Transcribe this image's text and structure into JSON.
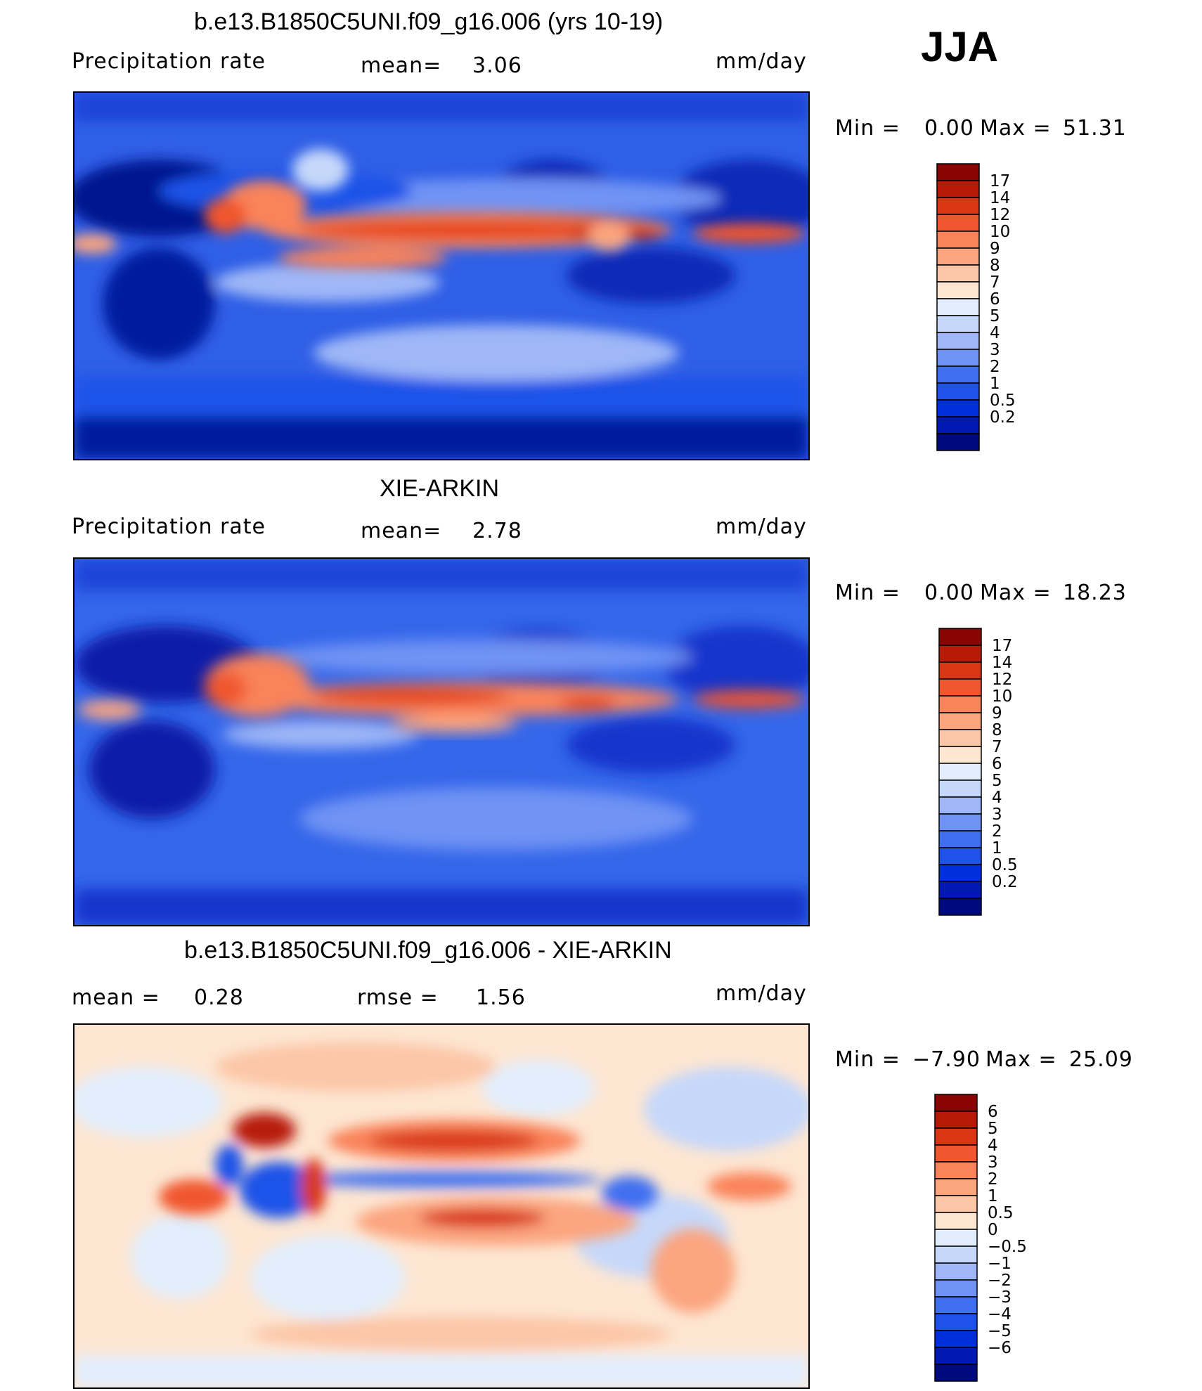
{
  "season_label": "JJA",
  "colors": {
    "precip_scale": [
      "#000a7f",
      "#0019b5",
      "#0030dc",
      "#1f52e8",
      "#3f6ff0",
      "#6f93f4",
      "#9fb7f7",
      "#c6d8fa",
      "#e2eefd",
      "#fde6d2",
      "#fcc6a7",
      "#fba57f",
      "#f9835a",
      "#f0572e",
      "#d93713",
      "#b81a0a",
      "#8a0404"
    ],
    "diff_scale": [
      "#000a7f",
      "#0019b5",
      "#0030dc",
      "#1f52e8",
      "#3f6ff0",
      "#6f93f4",
      "#9fb7f7",
      "#c6d8fa",
      "#e2eefd",
      "#fde6d2",
      "#fcc6a7",
      "#fba57f",
      "#f9835a",
      "#f0572e",
      "#d93713",
      "#b81a0a",
      "#8a0404"
    ]
  },
  "panels": [
    {
      "title": "b.e13.B1850C5UNI.f09_g16.006 (yrs 10-19)",
      "left_label": "Precipitation  rate",
      "stat_label": "mean=",
      "stat_value": "3.06",
      "units": "mm/day",
      "min_label": "Min  =",
      "min_value": "0.00",
      "max_label": "Max  =",
      "max_value": "51.31",
      "colorbar_ticks": [
        "17",
        "14",
        "12",
        "10",
        "9",
        "8",
        "7",
        "6",
        "5",
        "4",
        "3",
        "2",
        "1",
        "0.5",
        "0.2"
      ]
    },
    {
      "title": "XIE-ARKIN",
      "left_label": "Precipitation  rate",
      "stat_label": "mean=",
      "stat_value": "2.78",
      "units": "mm/day",
      "min_label": "Min  =",
      "min_value": "0.00",
      "max_label": "Max  =",
      "max_value": "18.23",
      "colorbar_ticks": [
        "17",
        "14",
        "12",
        "10",
        "9",
        "8",
        "7",
        "6",
        "5",
        "4",
        "3",
        "2",
        "1",
        "0.5",
        "0.2"
      ]
    },
    {
      "title": "b.e13.B1850C5UNI.f09_g16.006 - XIE-ARKIN",
      "mean_label": "mean  =",
      "mean_value": "0.28",
      "rmse_label": "rmse  =",
      "rmse_value": "1.56",
      "units": "mm/day",
      "min_label": "Min  =",
      "min_value": "−7.90",
      "max_label": "Max  =",
      "max_value": "25.09",
      "colorbar_ticks": [
        "6",
        "5",
        "4",
        "3",
        "2",
        "1",
        "0.5",
        "0",
        "−0.5",
        "−1",
        "−2",
        "−3",
        "−4",
        "−5",
        "−6"
      ]
    }
  ],
  "chart_data": [
    {
      "type": "heatmap",
      "title": "b.e13.B1850C5UNI.f09_g16.006 (yrs 10-19)",
      "variable": "Precipitation  rate",
      "units": "mm/day",
      "mean": 3.06,
      "min": 0.0,
      "max": 51.31,
      "colorbar_levels": [
        0.2,
        0.5,
        1,
        2,
        3,
        4,
        5,
        6,
        7,
        8,
        9,
        10,
        12,
        14,
        17
      ]
    },
    {
      "type": "heatmap",
      "title": "XIE-ARKIN",
      "variable": "Precipitation  rate",
      "units": "mm/day",
      "mean": 2.78,
      "min": 0.0,
      "max": 18.23,
      "colorbar_levels": [
        0.2,
        0.5,
        1,
        2,
        3,
        4,
        5,
        6,
        7,
        8,
        9,
        10,
        12,
        14,
        17
      ]
    },
    {
      "type": "heatmap",
      "title": "b.e13.B1850C5UNI.f09_g16.006 - XIE-ARKIN",
      "units": "mm/day",
      "mean": 0.28,
      "rmse": 1.56,
      "min": -7.9,
      "max": 25.09,
      "colorbar_levels": [
        -6,
        -5,
        -4,
        -3,
        -2,
        -1,
        -0.5,
        0,
        0.5,
        1,
        2,
        3,
        4,
        5,
        6
      ]
    }
  ]
}
